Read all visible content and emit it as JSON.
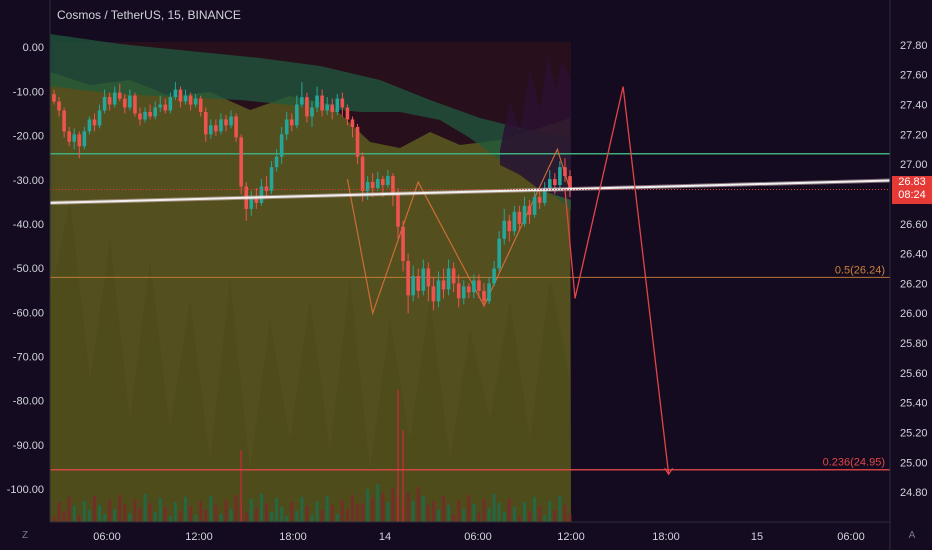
{
  "header": {
    "title": "Cosmos / TetherUS, 15, BINANCE"
  },
  "price_badge": {
    "price": "26.83",
    "countdown": "08:24"
  },
  "corners": {
    "left": "Z",
    "right": "A"
  },
  "colors": {
    "background": "#150b20",
    "up": "#26a69a",
    "down": "#ef5350",
    "olive_zone": "#5a5a1e",
    "green_band": "#1f5a3e",
    "fib_05": "#c8803a",
    "fib_0236": "#e04848",
    "projection": "#e24545",
    "resistance": "#3fae7a",
    "trend": "#f0f0f0"
  },
  "chart_data": {
    "type": "candlestick",
    "x_ticks": [
      "06:00",
      "12:00",
      "18:00",
      "14",
      "06:00",
      "12:00",
      "18:00",
      "15",
      "06:00"
    ],
    "left_axis_ticks": [
      "0.00",
      "-10.00",
      "-20.00",
      "-30.00",
      "-40.00",
      "-50.00",
      "-60.00",
      "-70.00",
      "-80.00",
      "-90.00",
      "-100.00"
    ],
    "right_axis_ticks": [
      "27.80",
      "27.60",
      "27.40",
      "27.20",
      "27.00",
      "26.80",
      "26.60",
      "26.40",
      "26.20",
      "26.00",
      "25.80",
      "25.60",
      "25.40",
      "25.20",
      "25.00",
      "24.80"
    ],
    "ylim_right": [
      24.72,
      27.9
    ],
    "ylim_left": [
      -103.4,
      3.9
    ],
    "last_price": 26.83,
    "fib_levels": [
      {
        "label": "0.5(26.24)",
        "value": 26.24
      },
      {
        "label": "0.236(24.95)",
        "value": 24.95
      }
    ],
    "resistance_level": 27.07,
    "trend_line": {
      "start": 26.74,
      "end": 26.89
    },
    "candles": [
      [
        27.47,
        27.42,
        27.5,
        27.4
      ],
      [
        27.42,
        27.36,
        27.45,
        27.32
      ],
      [
        27.36,
        27.22,
        27.38,
        27.18
      ],
      [
        27.22,
        27.15,
        27.25,
        27.12
      ],
      [
        27.15,
        27.2,
        27.24,
        27.1
      ],
      [
        27.2,
        27.12,
        27.22,
        27.04
      ],
      [
        27.12,
        27.22,
        27.25,
        27.1
      ],
      [
        27.22,
        27.3,
        27.32,
        27.2
      ],
      [
        27.3,
        27.26,
        27.34,
        27.22
      ],
      [
        27.26,
        27.36,
        27.4,
        27.24
      ],
      [
        27.36,
        27.45,
        27.5,
        27.34
      ],
      [
        27.45,
        27.4,
        27.48,
        27.36
      ],
      [
        27.4,
        27.48,
        27.52,
        27.38
      ],
      [
        27.48,
        27.44,
        27.54,
        27.42
      ],
      [
        27.44,
        27.38,
        27.47,
        27.34
      ],
      [
        27.38,
        27.46,
        27.5,
        27.36
      ],
      [
        27.46,
        27.34,
        27.48,
        27.32
      ],
      [
        27.34,
        27.3,
        27.38,
        27.26
      ],
      [
        27.3,
        27.35,
        27.38,
        27.28
      ],
      [
        27.35,
        27.32,
        27.4,
        27.3
      ],
      [
        27.32,
        27.38,
        27.42,
        27.3
      ],
      [
        27.38,
        27.4,
        27.46,
        27.35
      ],
      [
        27.4,
        27.36,
        27.44,
        27.34
      ],
      [
        27.36,
        27.45,
        27.48,
        27.34
      ],
      [
        27.45,
        27.5,
        27.55,
        27.43
      ],
      [
        27.5,
        27.42,
        27.52,
        27.38
      ],
      [
        27.42,
        27.46,
        27.5,
        27.4
      ],
      [
        27.46,
        27.4,
        27.48,
        27.36
      ],
      [
        27.4,
        27.44,
        27.47,
        27.38
      ],
      [
        27.44,
        27.35,
        27.46,
        27.32
      ],
      [
        27.35,
        27.2,
        27.38,
        27.15
      ],
      [
        27.2,
        27.26,
        27.3,
        27.17
      ],
      [
        27.26,
        27.22,
        27.3,
        27.19
      ],
      [
        27.22,
        27.3,
        27.34,
        27.2
      ],
      [
        27.3,
        27.26,
        27.33,
        27.22
      ],
      [
        27.26,
        27.32,
        27.36,
        27.24
      ],
      [
        27.32,
        27.18,
        27.34,
        27.15
      ],
      [
        27.18,
        26.85,
        27.2,
        26.8
      ],
      [
        26.85,
        26.7,
        26.88,
        26.62
      ],
      [
        26.7,
        26.78,
        26.82,
        26.65
      ],
      [
        26.78,
        26.74,
        26.84,
        26.7
      ],
      [
        26.74,
        26.85,
        26.9,
        26.72
      ],
      [
        26.85,
        26.82,
        26.92,
        26.78
      ],
      [
        26.82,
        26.98,
        27.02,
        26.8
      ],
      [
        26.98,
        27.05,
        27.1,
        26.95
      ],
      [
        27.05,
        27.2,
        27.25,
        27.0
      ],
      [
        27.2,
        27.3,
        27.35,
        27.16
      ],
      [
        27.3,
        27.26,
        27.34,
        27.22
      ],
      [
        27.26,
        27.4,
        27.46,
        27.24
      ],
      [
        27.4,
        27.45,
        27.55,
        27.38
      ],
      [
        27.45,
        27.32,
        27.48,
        27.28
      ],
      [
        27.32,
        27.38,
        27.42,
        27.25
      ],
      [
        27.38,
        27.46,
        27.52,
        27.35
      ],
      [
        27.46,
        27.36,
        27.5,
        27.32
      ],
      [
        27.36,
        27.4,
        27.45,
        27.33
      ],
      [
        27.4,
        27.35,
        27.44,
        27.3
      ],
      [
        27.35,
        27.44,
        27.47,
        27.33
      ],
      [
        27.44,
        27.38,
        27.48,
        27.32
      ],
      [
        27.38,
        27.3,
        27.4,
        27.26
      ],
      [
        27.3,
        27.25,
        27.32,
        27.18
      ],
      [
        27.25,
        27.05,
        27.27,
        27.0
      ],
      [
        27.05,
        26.82,
        27.08,
        26.75
      ],
      [
        26.82,
        26.88,
        26.92,
        26.76
      ],
      [
        26.88,
        26.84,
        26.94,
        26.78
      ],
      [
        26.84,
        26.9,
        26.95,
        26.82
      ],
      [
        26.9,
        26.86,
        26.92,
        26.78
      ],
      [
        26.86,
        26.92,
        26.96,
        26.84
      ],
      [
        26.92,
        26.8,
        26.94,
        26.72
      ],
      [
        26.8,
        26.58,
        26.84,
        26.5
      ],
      [
        26.58,
        26.35,
        26.62,
        26.28
      ],
      [
        26.35,
        26.12,
        26.4,
        26.0
      ],
      [
        26.12,
        26.25,
        26.32,
        26.08
      ],
      [
        26.25,
        26.15,
        26.3,
        26.1
      ],
      [
        26.15,
        26.3,
        26.36,
        26.12
      ],
      [
        26.3,
        26.18,
        26.34,
        26.08
      ],
      [
        26.18,
        26.08,
        26.24,
        26.02
      ],
      [
        26.08,
        26.22,
        26.28,
        26.04
      ],
      [
        26.22,
        26.16,
        26.3,
        26.1
      ],
      [
        26.16,
        26.3,
        26.36,
        26.12
      ],
      [
        26.3,
        26.2,
        26.34,
        26.14
      ],
      [
        26.2,
        26.1,
        26.26,
        26.04
      ],
      [
        26.1,
        26.18,
        26.22,
        26.06
      ],
      [
        26.18,
        26.14,
        26.2,
        26.1
      ],
      [
        26.14,
        26.22,
        26.26,
        26.1
      ],
      [
        26.22,
        26.15,
        26.26,
        26.1
      ],
      [
        26.15,
        26.08,
        26.2,
        26.04
      ],
      [
        26.08,
        26.2,
        26.24,
        26.06
      ],
      [
        26.2,
        26.3,
        26.35,
        26.18
      ],
      [
        26.3,
        26.5,
        26.55,
        26.28
      ],
      [
        26.5,
        26.62,
        26.7,
        26.46
      ],
      [
        26.62,
        26.55,
        26.66,
        26.48
      ],
      [
        26.55,
        26.68,
        26.72,
        26.52
      ],
      [
        26.68,
        26.6,
        26.72,
        26.55
      ],
      [
        26.6,
        26.72,
        26.78,
        26.58
      ],
      [
        26.72,
        26.66,
        26.76,
        26.6
      ],
      [
        26.66,
        26.78,
        26.84,
        26.64
      ],
      [
        26.78,
        26.74,
        26.82,
        26.7
      ],
      [
        26.74,
        26.84,
        26.88,
        26.72
      ],
      [
        26.84,
        26.9,
        26.96,
        26.82
      ],
      [
        26.9,
        26.86,
        26.94,
        26.8
      ],
      [
        26.86,
        26.98,
        27.02,
        26.84
      ],
      [
        26.98,
        26.92,
        27.04,
        26.88
      ],
      [
        26.92,
        26.83,
        26.96,
        26.78
      ]
    ],
    "projection_path": [
      [
        -1,
        26.83
      ],
      [
        1,
        26.1
      ],
      [
        10.5,
        27.52
      ],
      [
        19.5,
        24.92
      ]
    ],
    "orange_zigzag": [
      [
        -44,
        26.9
      ],
      [
        -39,
        26.0
      ],
      [
        -30,
        26.88
      ],
      [
        -17,
        26.05
      ],
      [
        -2.5,
        27.1
      ],
      [
        0,
        26.83
      ]
    ]
  }
}
